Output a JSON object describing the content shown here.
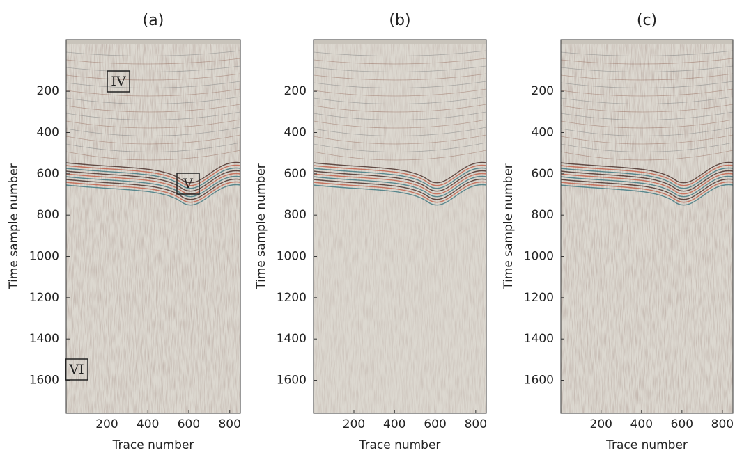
{
  "chart_data": [
    {
      "type": "image",
      "title": "(a)",
      "xlabel": "Trace number",
      "ylabel": "Time sample number",
      "xlim": [
        1,
        852
      ],
      "ylim": [
        -50,
        1760
      ],
      "y_reversed": true,
      "xticks": [
        200,
        400,
        600,
        800
      ],
      "yticks": [
        200,
        400,
        600,
        800,
        1000,
        1200,
        1400,
        1600
      ],
      "annotations": [
        "IV",
        "V",
        "VI"
      ]
    },
    {
      "type": "image",
      "title": "(b)",
      "xlabel": "Trace number",
      "ylabel": "Time sample number",
      "xlim": [
        1,
        852
      ],
      "ylim": [
        -50,
        1760
      ],
      "y_reversed": true,
      "xticks": [
        200,
        400,
        600,
        800
      ],
      "yticks": [
        200,
        400,
        600,
        800,
        1000,
        1200,
        1400,
        1600
      ]
    },
    {
      "type": "image",
      "title": "(c)",
      "xlabel": "Trace number",
      "ylabel": "Time sample number",
      "xlim": [
        1,
        852
      ],
      "ylim": [
        -50,
        1760
      ],
      "y_reversed": true,
      "xticks": [
        200,
        400,
        600,
        800
      ],
      "yticks": [
        200,
        400,
        600,
        800,
        1000,
        1200,
        1400,
        1600
      ]
    }
  ]
}
